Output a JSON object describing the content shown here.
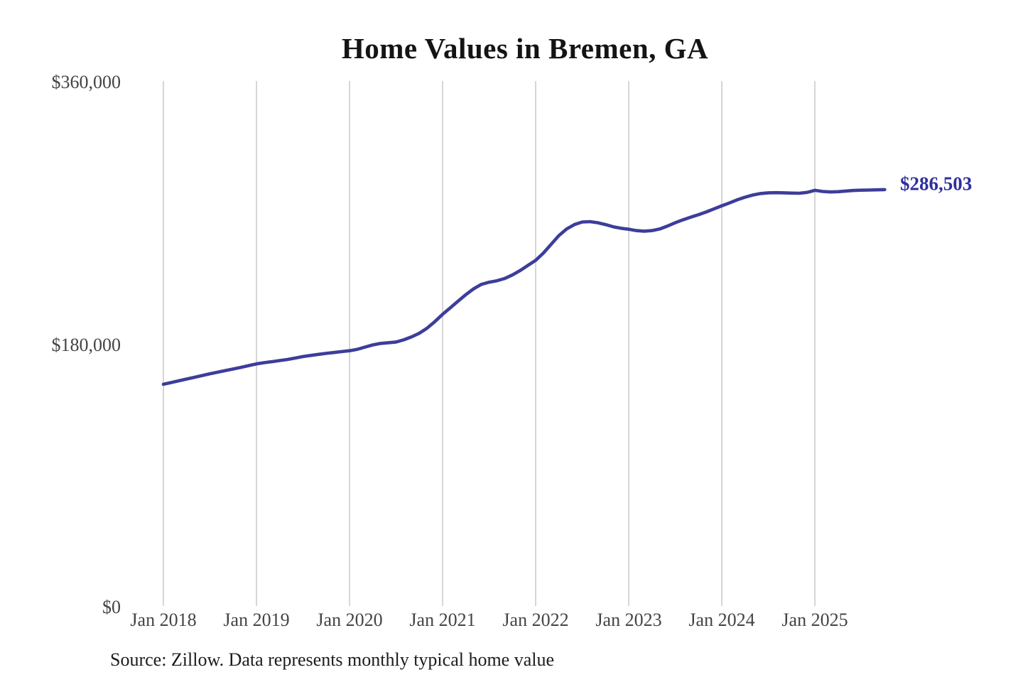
{
  "page": {
    "title": "Home Values in Bremen, GA",
    "latest_value_label": "$286,503",
    "source_note": "Source: Zillow. Data represents monthly typical home value"
  },
  "colors": {
    "background": "#ffffff",
    "line": "#3d3d9b",
    "latest_value_label": "#2f2f9e",
    "grid": "#cccccc",
    "axis_labels": "#444444",
    "title": "#141414",
    "source": "#1c1c1c"
  },
  "chart_data": {
    "type": "line",
    "title": "Home Values in Bremen, GA",
    "xlabel": "",
    "ylabel": "",
    "ylim": [
      0,
      360000
    ],
    "grid": "vertical-gridlines-only",
    "legend": "none",
    "y_ticks": [
      {
        "label": "$360,000",
        "value": 360000
      },
      {
        "label": "$180,000",
        "value": 180000
      },
      {
        "label": "$0",
        "value": 0
      }
    ],
    "x_ticks": [
      {
        "label": "Jan 2018",
        "month_index": 0
      },
      {
        "label": "Jan 2019",
        "month_index": 12
      },
      {
        "label": "Jan 2020",
        "month_index": 24
      },
      {
        "label": "Jan 2021",
        "month_index": 36
      },
      {
        "label": "Jan 2022",
        "month_index": 48
      },
      {
        "label": "Jan 2023",
        "month_index": 60
      },
      {
        "label": "Jan 2024",
        "month_index": 72
      },
      {
        "label": "Jan 2025",
        "month_index": 84
      }
    ],
    "end_annotation": {
      "label": "$286,503",
      "value": 286503,
      "month": "2025-10"
    },
    "series": [
      {
        "name": "Monthly typical home value",
        "months": [
          "2018-01",
          "2018-02",
          "2018-03",
          "2018-04",
          "2018-05",
          "2018-06",
          "2018-07",
          "2018-08",
          "2018-09",
          "2018-10",
          "2018-11",
          "2018-12",
          "2019-01",
          "2019-02",
          "2019-03",
          "2019-04",
          "2019-05",
          "2019-06",
          "2019-07",
          "2019-08",
          "2019-09",
          "2019-10",
          "2019-11",
          "2019-12",
          "2020-01",
          "2020-02",
          "2020-03",
          "2020-04",
          "2020-05",
          "2020-06",
          "2020-07",
          "2020-08",
          "2020-09",
          "2020-10",
          "2020-11",
          "2020-12",
          "2021-01",
          "2021-02",
          "2021-03",
          "2021-04",
          "2021-05",
          "2021-06",
          "2021-07",
          "2021-08",
          "2021-09",
          "2021-10",
          "2021-11",
          "2021-12",
          "2022-01",
          "2022-02",
          "2022-03",
          "2022-04",
          "2022-05",
          "2022-06",
          "2022-07",
          "2022-08",
          "2022-09",
          "2022-10",
          "2022-11",
          "2022-12",
          "2023-01",
          "2023-02",
          "2023-03",
          "2023-04",
          "2023-05",
          "2023-06",
          "2023-07",
          "2023-08",
          "2023-09",
          "2023-10",
          "2023-11",
          "2023-12",
          "2024-01",
          "2024-02",
          "2024-03",
          "2024-04",
          "2024-05",
          "2024-06",
          "2024-07",
          "2024-08",
          "2024-09",
          "2024-10",
          "2024-11",
          "2024-12",
          "2025-01",
          "2025-02",
          "2025-03",
          "2025-04",
          "2025-05",
          "2025-06",
          "2025-07",
          "2025-08",
          "2025-09",
          "2025-10"
        ],
        "values": [
          153000,
          154200,
          155400,
          156600,
          157800,
          159000,
          160200,
          161300,
          162400,
          163500,
          164600,
          165800,
          167000,
          167800,
          168500,
          169300,
          170000,
          171000,
          172000,
          172800,
          173500,
          174200,
          174800,
          175400,
          176000,
          177000,
          178500,
          180000,
          181000,
          181500,
          182000,
          183500,
          185500,
          188000,
          191500,
          196000,
          201000,
          205500,
          210000,
          214500,
          218500,
          221500,
          223000,
          224000,
          225500,
          228000,
          231000,
          234500,
          238000,
          243000,
          249000,
          255000,
          259500,
          262500,
          264300,
          264500,
          263800,
          262500,
          261000,
          260000,
          259300,
          258400,
          258000,
          258400,
          259500,
          261500,
          263800,
          265800,
          267600,
          269300,
          271200,
          273300,
          275400,
          277400,
          279500,
          281300,
          282800,
          283800,
          284300,
          284400,
          284300,
          284100,
          284000,
          284600,
          286000,
          285200,
          284900,
          285100,
          285500,
          285900,
          286100,
          286200,
          286350,
          286503
        ]
      }
    ]
  }
}
